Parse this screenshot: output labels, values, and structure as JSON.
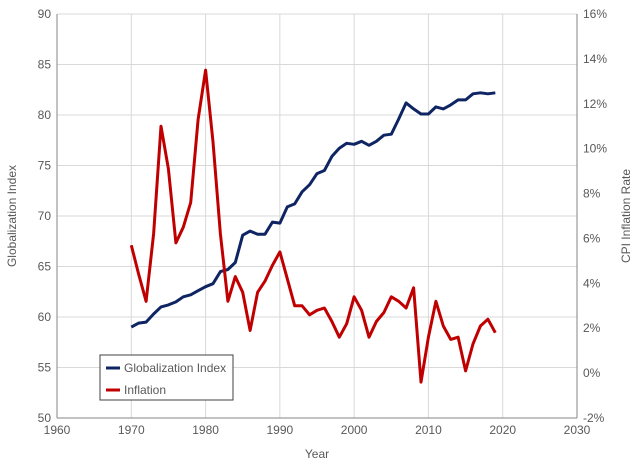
{
  "chart_data": {
    "type": "line",
    "xlabel": "Year",
    "ylabel": "Globalization Index",
    "y2label": "CPI Inflation Rate",
    "xlim": [
      1960,
      2030
    ],
    "xticks": [
      1960,
      1970,
      1980,
      1990,
      2000,
      2010,
      2020,
      2030
    ],
    "ylim": [
      50,
      90
    ],
    "yticks": [
      50,
      55,
      60,
      65,
      70,
      75,
      80,
      85,
      90
    ],
    "y2lim": [
      -2,
      16
    ],
    "y2ticks": [
      "-2%",
      "0%",
      "2%",
      "4%",
      "6%",
      "8%",
      "10%",
      "12%",
      "14%",
      "16%"
    ],
    "grid": true,
    "legend": "bottom-left",
    "x": [
      1970,
      1971,
      1972,
      1973,
      1974,
      1975,
      1976,
      1977,
      1978,
      1979,
      1980,
      1981,
      1982,
      1983,
      1984,
      1985,
      1986,
      1987,
      1988,
      1989,
      1990,
      1991,
      1992,
      1993,
      1994,
      1995,
      1996,
      1997,
      1998,
      1999,
      2000,
      2001,
      2002,
      2003,
      2004,
      2005,
      2006,
      2007,
      2008,
      2009,
      2010,
      2011,
      2012,
      2013,
      2014,
      2015,
      2016,
      2017,
      2018,
      2019
    ],
    "series": [
      {
        "name": "Globalization Index",
        "axis": "left",
        "color": "#0f2463",
        "values": [
          59.0,
          59.4,
          59.5,
          60.3,
          61.0,
          61.2,
          61.5,
          62.0,
          62.2,
          62.6,
          63.0,
          63.3,
          64.5,
          64.7,
          65.4,
          68.1,
          68.5,
          68.2,
          68.2,
          69.4,
          69.3,
          70.9,
          71.2,
          72.4,
          73.1,
          74.2,
          74.5,
          75.9,
          76.7,
          77.2,
          77.1,
          77.4,
          77.0,
          77.4,
          78.0,
          78.1,
          79.6,
          81.2,
          80.6,
          80.1,
          80.1,
          80.8,
          80.6,
          81.0,
          81.5,
          81.5,
          82.1,
          82.2,
          82.1,
          82.2
        ]
      },
      {
        "name": "Inflation",
        "axis": "right",
        "color": "#c00000",
        "values": [
          5.7,
          4.4,
          3.2,
          6.2,
          11.0,
          9.1,
          5.8,
          6.5,
          7.6,
          11.3,
          13.5,
          10.3,
          6.2,
          3.2,
          4.3,
          3.6,
          1.9,
          3.6,
          4.1,
          4.8,
          5.4,
          4.2,
          3.0,
          3.0,
          2.6,
          2.8,
          2.9,
          2.3,
          1.6,
          2.2,
          3.4,
          2.8,
          1.6,
          2.3,
          2.7,
          3.4,
          3.2,
          2.9,
          3.8,
          -0.4,
          1.6,
          3.2,
          2.1,
          1.5,
          1.6,
          0.1,
          1.3,
          2.1,
          2.4,
          1.8
        ]
      }
    ]
  }
}
